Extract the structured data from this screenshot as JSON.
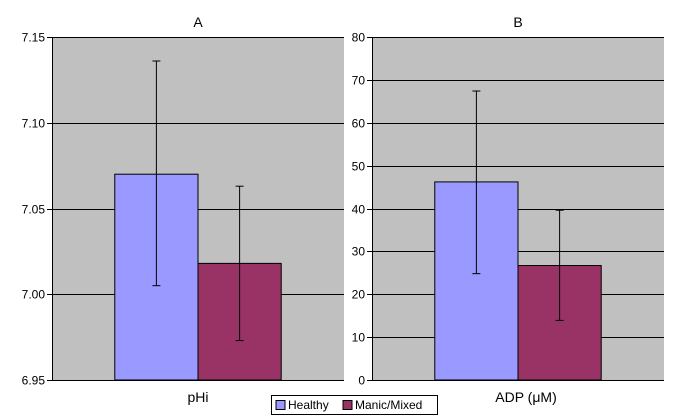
{
  "chart_data": [
    {
      "type": "bar",
      "title": "A",
      "categories": [
        "pHi"
      ],
      "ylim": [
        6.95,
        7.15
      ],
      "yticks": [
        "6.95",
        "7.00",
        "7.05",
        "7.10",
        "7.15"
      ],
      "grid": true,
      "series": [
        {
          "name": "Healthy",
          "values": [
            7.07
          ],
          "error_high": [
            7.136
          ],
          "error_low": [
            7.005
          ]
        },
        {
          "name": "Manic/Mixed",
          "values": [
            7.018
          ],
          "error_high": [
            7.063
          ],
          "error_low": [
            6.973
          ]
        }
      ]
    },
    {
      "type": "bar",
      "title": "B",
      "categories": [
        "ADP (μM)"
      ],
      "ylim": [
        0,
        80
      ],
      "yticks": [
        "0",
        "10",
        "20",
        "30",
        "40",
        "50",
        "60",
        "70",
        "80"
      ],
      "grid": true,
      "series": [
        {
          "name": "Healthy",
          "values": [
            46.2
          ],
          "error_high": [
            67.4
          ],
          "error_low": [
            24.8
          ]
        },
        {
          "name": "Manic/Mixed",
          "values": [
            26.7
          ],
          "error_high": [
            39.6
          ],
          "error_low": [
            13.9
          ]
        }
      ]
    }
  ],
  "legend": {
    "position": "bottom-center",
    "items": [
      {
        "label": "Healthy",
        "color": "#9999ff"
      },
      {
        "label": "Manic/Mixed",
        "color": "#993366"
      }
    ]
  },
  "colors": {
    "plot_bg": "#c0c0c0",
    "grid": "#000000",
    "bar_border": "#000000"
  }
}
